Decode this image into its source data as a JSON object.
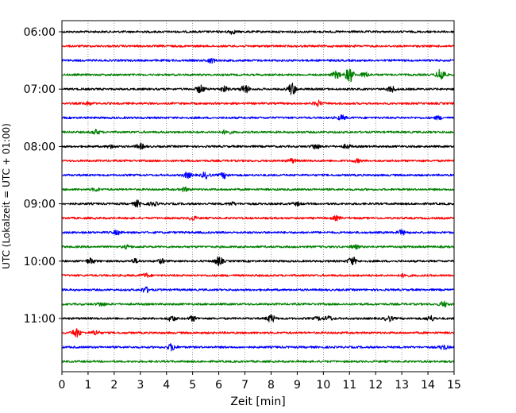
{
  "chart_data": {
    "type": "line",
    "xlabel": "Zeit  [min]",
    "ylabel": "UTC (Lokalzeit = UTC + 01:00)",
    "xlim": [
      0,
      15
    ],
    "x_ticks": [
      0,
      1,
      2,
      3,
      4,
      5,
      6,
      7,
      8,
      9,
      10,
      11,
      12,
      13,
      14,
      15
    ],
    "y_ticks": [
      {
        "row": 0,
        "label": "06:00"
      },
      {
        "row": 4,
        "label": "07:00"
      },
      {
        "row": 8,
        "label": "08:00"
      },
      {
        "row": 12,
        "label": "09:00"
      },
      {
        "row": 16,
        "label": "10:00"
      },
      {
        "row": 20,
        "label": "11:00"
      }
    ],
    "grid": "vertical-dotted",
    "colors": [
      "#000000",
      "#ff0000",
      "#0000ff",
      "#008000"
    ],
    "series": [
      {
        "start": "06:00",
        "events": [
          [
            6.5,
            0.25
          ]
        ]
      },
      {
        "start": "06:15",
        "events": []
      },
      {
        "start": "06:30",
        "events": [
          [
            5.7,
            0.3
          ]
        ]
      },
      {
        "start": "06:45",
        "events": [
          [
            11.0,
            1.0
          ],
          [
            10.5,
            0.45
          ],
          [
            11.6,
            0.3
          ],
          [
            14.5,
            0.9
          ]
        ]
      },
      {
        "start": "07:00",
        "events": [
          [
            5.3,
            0.5
          ],
          [
            6.2,
            0.35
          ],
          [
            7.0,
            0.55
          ],
          [
            8.8,
            0.8
          ],
          [
            12.6,
            0.4
          ]
        ]
      },
      {
        "start": "07:15",
        "events": [
          [
            9.8,
            0.35
          ],
          [
            1.0,
            0.2
          ]
        ]
      },
      {
        "start": "07:30",
        "events": [
          [
            10.7,
            0.3
          ],
          [
            14.4,
            0.2
          ]
        ]
      },
      {
        "start": "07:45",
        "events": [
          [
            1.3,
            0.3
          ],
          [
            6.3,
            0.3
          ]
        ]
      },
      {
        "start": "08:00",
        "events": [
          [
            3.0,
            0.35
          ],
          [
            1.9,
            0.2
          ],
          [
            9.7,
            0.35
          ],
          [
            10.9,
            0.25
          ]
        ]
      },
      {
        "start": "08:15",
        "events": [
          [
            8.8,
            0.25
          ],
          [
            11.3,
            0.2
          ]
        ]
      },
      {
        "start": "08:30",
        "events": [
          [
            4.8,
            0.35
          ],
          [
            5.5,
            0.4
          ],
          [
            6.2,
            0.35
          ]
        ]
      },
      {
        "start": "08:45",
        "events": [
          [
            4.7,
            0.25
          ],
          [
            1.3,
            0.2
          ]
        ]
      },
      {
        "start": "09:00",
        "events": [
          [
            2.9,
            0.4
          ],
          [
            3.5,
            0.25
          ],
          [
            6.5,
            0.2
          ],
          [
            9.0,
            0.2
          ]
        ]
      },
      {
        "start": "09:15",
        "events": [
          [
            5.0,
            0.25
          ],
          [
            10.5,
            0.25
          ]
        ]
      },
      {
        "start": "09:30",
        "events": [
          [
            2.1,
            0.25
          ],
          [
            13.0,
            0.3
          ]
        ]
      },
      {
        "start": "09:45",
        "events": [
          [
            2.5,
            0.2
          ],
          [
            11.2,
            0.25
          ]
        ]
      },
      {
        "start": "10:00",
        "events": [
          [
            1.1,
            0.35
          ],
          [
            6.0,
            0.55
          ],
          [
            11.1,
            0.55
          ],
          [
            2.8,
            0.25
          ],
          [
            3.8,
            0.25
          ]
        ]
      },
      {
        "start": "10:15",
        "events": [
          [
            3.2,
            0.25
          ],
          [
            13.1,
            0.2
          ]
        ]
      },
      {
        "start": "10:30",
        "events": [
          [
            3.2,
            0.35
          ]
        ]
      },
      {
        "start": "10:45",
        "events": [
          [
            1.5,
            0.25
          ],
          [
            14.6,
            0.35
          ]
        ]
      },
      {
        "start": "11:00",
        "events": [
          [
            4.2,
            0.35
          ],
          [
            5.0,
            0.3
          ],
          [
            8.0,
            0.5
          ],
          [
            10.2,
            0.3
          ],
          [
            12.5,
            0.35
          ],
          [
            14.1,
            0.35
          ],
          [
            9.8,
            0.2
          ]
        ]
      },
      {
        "start": "11:15",
        "events": [
          [
            0.55,
            0.6
          ],
          [
            1.3,
            0.3
          ]
        ]
      },
      {
        "start": "11:30",
        "events": [
          [
            4.2,
            0.45
          ],
          [
            14.6,
            0.3
          ]
        ]
      },
      {
        "start": "11:45",
        "events": []
      }
    ]
  }
}
